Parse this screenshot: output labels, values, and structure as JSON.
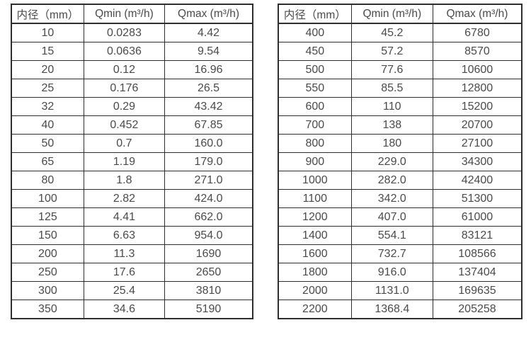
{
  "page": {
    "background_color": "#ffffff",
    "text_color": "#4a4a4a",
    "border_color": "#2e2e2e"
  },
  "tables": [
    {
      "name": "flow-table-small-diameters",
      "headers": [
        "内径（mm）",
        "Qmin (m³/h)",
        "Qmax (m³/h)"
      ],
      "rows": [
        [
          "10",
          "0.0283",
          "4.42"
        ],
        [
          "15",
          "0.0636",
          "9.54"
        ],
        [
          "20",
          "0.12",
          "16.96"
        ],
        [
          "25",
          "0.176",
          "26.5"
        ],
        [
          "32",
          "0.29",
          "43.42"
        ],
        [
          "40",
          "0.452",
          "67.85"
        ],
        [
          "50",
          "0.7",
          "160.0"
        ],
        [
          "65",
          "1.19",
          "179.0"
        ],
        [
          "80",
          "1.8",
          "271.0"
        ],
        [
          "100",
          "2.82",
          "424.0"
        ],
        [
          "125",
          "4.41",
          "662.0"
        ],
        [
          "150",
          "6.63",
          "954.0"
        ],
        [
          "200",
          "11.3",
          "1690"
        ],
        [
          "250",
          "17.6",
          "2650"
        ],
        [
          "300",
          "25.4",
          "3810"
        ],
        [
          "350",
          "34.6",
          "5190"
        ]
      ]
    },
    {
      "name": "flow-table-large-diameters",
      "headers": [
        "内径（mm）",
        "Qmin (m³/h)",
        "Qmax (m³/h)"
      ],
      "rows": [
        [
          "400",
          "45.2",
          "6780"
        ],
        [
          "450",
          "57.2",
          "8570"
        ],
        [
          "500",
          "77.6",
          "10600"
        ],
        [
          "550",
          "85.5",
          "12800"
        ],
        [
          "600",
          "110",
          "15200"
        ],
        [
          "700",
          "138",
          "20700"
        ],
        [
          "800",
          "180",
          "27100"
        ],
        [
          "900",
          "229.0",
          "34300"
        ],
        [
          "1000",
          "282.0",
          "42400"
        ],
        [
          "1100",
          "342.0",
          "51300"
        ],
        [
          "1200",
          "407.0",
          "61000"
        ],
        [
          "1400",
          "554.1",
          "83121"
        ],
        [
          "1600",
          "732.7",
          "108566"
        ],
        [
          "1800",
          "916.0",
          "137404"
        ],
        [
          "2000",
          "1131.0",
          "169635"
        ],
        [
          "2200",
          "1368.4",
          "205258"
        ]
      ]
    }
  ]
}
